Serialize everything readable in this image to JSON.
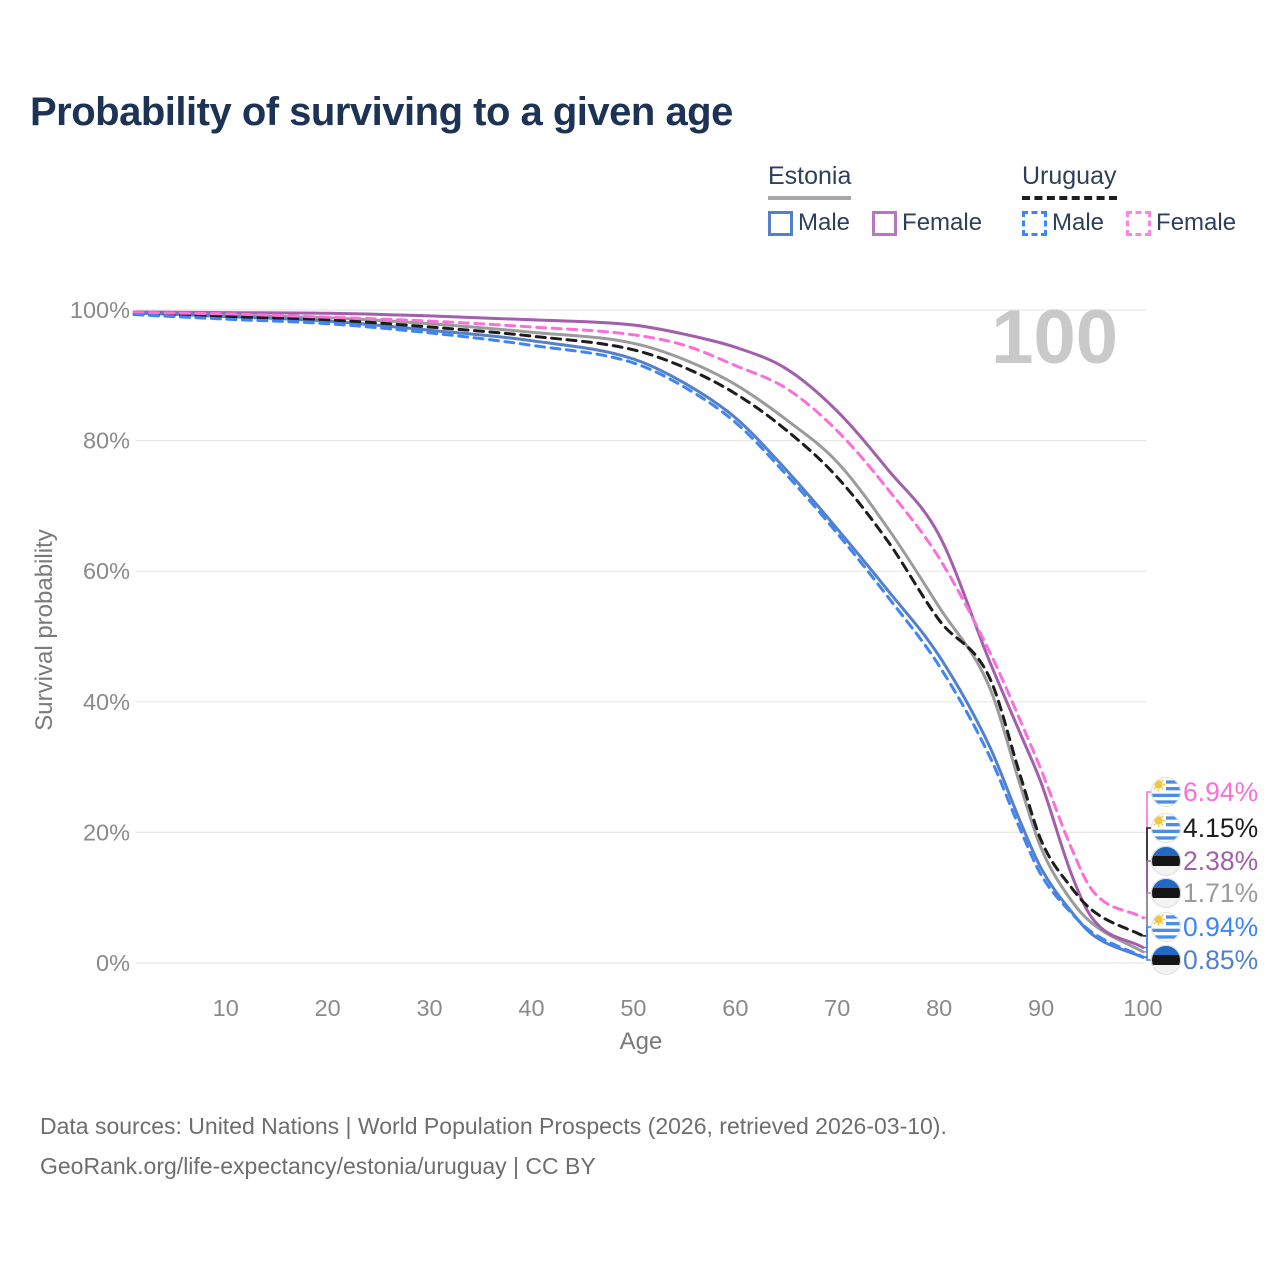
{
  "title": "Probability of surviving to a given age",
  "legend": {
    "groups": [
      {
        "label": "Estonia",
        "swatch_color": "#a8a8a8",
        "swatch_style": "solid",
        "items": [
          {
            "label": "Male",
            "color": "#5480cb",
            "style": "solid"
          },
          {
            "label": "Female",
            "color": "#b577bd",
            "style": "solid"
          }
        ]
      },
      {
        "label": "Uruguay",
        "swatch_color": "#1d1d1d",
        "swatch_style": "dashed",
        "items": [
          {
            "label": "Male",
            "color": "#3e86f5",
            "style": "dashed"
          },
          {
            "label": "Female",
            "color": "#fb85e1",
            "style": "dashed"
          }
        ]
      }
    ]
  },
  "watermark_age_label": "100",
  "chart_data": {
    "type": "line",
    "title": "Probability of surviving to a given age",
    "xlabel": "Age",
    "ylabel": "Survival probability",
    "grid": true,
    "xlim": [
      1,
      100
    ],
    "ylim": [
      0,
      100
    ],
    "xticks": [
      10,
      20,
      30,
      40,
      50,
      60,
      70,
      80,
      90,
      100
    ],
    "yticks": [
      {
        "value": 0,
        "label": "0%"
      },
      {
        "value": 20,
        "label": "20%"
      },
      {
        "value": 40,
        "label": "40%"
      },
      {
        "value": 60,
        "label": "60%"
      },
      {
        "value": 80,
        "label": "80%"
      },
      {
        "value": 100,
        "label": "100%"
      }
    ],
    "x_ages": [
      1,
      10,
      20,
      30,
      40,
      50,
      55,
      60,
      65,
      70,
      75,
      80,
      85,
      88,
      90,
      93,
      95,
      100
    ],
    "series": [
      {
        "name": "Estonia (both sexes)",
        "country": "Estonia",
        "sex": "both",
        "style": "solid",
        "color": "#9b9b9b",
        "flag": "ee",
        "end_value": 1.71,
        "end_label": "1.71%",
        "values": [
          99.5,
          99.2,
          98.8,
          97.9,
          96.6,
          94.9,
          92.4,
          88.6,
          83.2,
          76.7,
          66.5,
          54.5,
          42.0,
          27.0,
          17.6,
          9.5,
          6.1,
          1.71
        ]
      },
      {
        "name": "Estonia Female",
        "country": "Estonia",
        "sex": "female",
        "style": "solid",
        "color": "#a25fab",
        "flag": "ee",
        "end_value": 2.38,
        "end_label": "2.38%",
        "values": [
          99.7,
          99.6,
          99.5,
          99.1,
          98.5,
          97.7,
          96.3,
          94.3,
          91.0,
          84.5,
          75.5,
          65.5,
          46.0,
          35.0,
          27.6,
          13.5,
          6.9,
          2.38
        ]
      },
      {
        "name": "Estonia Male",
        "country": "Estonia",
        "sex": "male",
        "style": "solid",
        "color": "#5480cb",
        "flag": "ee",
        "end_value": 0.85,
        "end_label": "0.85%",
        "values": [
          99.6,
          99.0,
          98.3,
          96.9,
          95.3,
          92.5,
          88.8,
          83.5,
          75.5,
          66.5,
          57.0,
          47.0,
          33.0,
          21.5,
          14.5,
          7.8,
          4.4,
          0.85
        ]
      },
      {
        "name": "Uruguay (both sexes)",
        "country": "Uruguay",
        "sex": "both",
        "style": "dashed",
        "color": "#1d1d1d",
        "flag": "uy",
        "end_value": 4.15,
        "end_label": "4.15%",
        "values": [
          99.4,
          99.0,
          98.5,
          97.4,
          96.0,
          93.9,
          91.2,
          87.2,
          81.6,
          74.4,
          64.5,
          52.5,
          43.5,
          28.5,
          18.8,
          11.5,
          8.1,
          4.15
        ]
      },
      {
        "name": "Uruguay Female",
        "country": "Uruguay",
        "sex": "female",
        "style": "dashed",
        "color": "#fa70d8",
        "flag": "uy",
        "end_value": 6.94,
        "end_label": "6.94%",
        "values": [
          99.6,
          99.4,
          98.9,
          98.3,
          97.4,
          96.2,
          94.6,
          91.5,
          88.0,
          81.5,
          72.5,
          62.0,
          47.5,
          37.0,
          29.6,
          17.5,
          11.2,
          6.94
        ]
      },
      {
        "name": "Uruguay Male",
        "country": "Uruguay",
        "sex": "male",
        "style": "dashed",
        "color": "#3e86f5",
        "flag": "uy",
        "end_value": 0.94,
        "end_label": "0.94%",
        "values": [
          99.3,
          98.6,
          97.9,
          96.5,
          94.6,
          91.9,
          88.2,
          82.8,
          74.8,
          65.8,
          56.0,
          45.5,
          31.5,
          20.3,
          13.5,
          7.6,
          4.7,
          0.94
        ]
      }
    ]
  },
  "footer": {
    "line1": "Data sources: United Nations | World Population Prospects (2026, retrieved 2026-03-10).",
    "line2": "GeoRank.org/life-expectancy/estonia/uruguay | CC BY"
  }
}
